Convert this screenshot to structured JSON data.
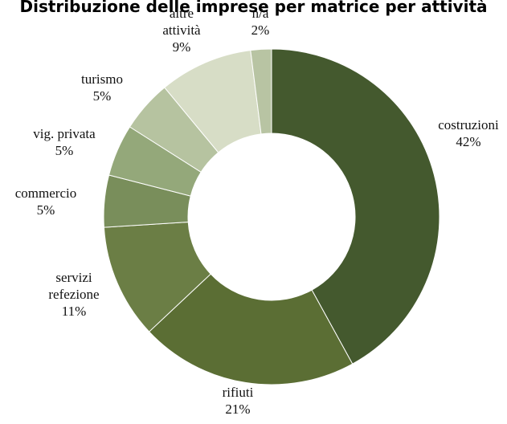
{
  "chart_data": {
    "type": "pie",
    "variant": "donut",
    "title": "Distribuzione delle imprese per matrice per attività",
    "slices": [
      {
        "label_lines": [
          "costruzioni"
        ],
        "percent_label": "42%",
        "value": 42,
        "color": "#44592e"
      },
      {
        "label_lines": [
          "rifiuti"
        ],
        "percent_label": "21%",
        "value": 21,
        "color": "#5b6e34"
      },
      {
        "label_lines": [
          "servizi",
          "refezione"
        ],
        "percent_label": "11%",
        "value": 11,
        "color": "#6b7e45"
      },
      {
        "label_lines": [
          "commercio"
        ],
        "percent_label": "5%",
        "value": 5,
        "color": "#798e5b"
      },
      {
        "label_lines": [
          "vig. privata"
        ],
        "percent_label": "5%",
        "value": 5,
        "color": "#94a87a"
      },
      {
        "label_lines": [
          "turismo"
        ],
        "percent_label": "5%",
        "value": 5,
        "color": "#b6c3a0"
      },
      {
        "label_lines": [
          "altre",
          "attività"
        ],
        "percent_label": "9%",
        "value": 9,
        "color": "#d7ddc6"
      },
      {
        "label_lines": [
          "n/a"
        ],
        "percent_label": "2%",
        "value": 2,
        "color": "#b8c4a3"
      }
    ],
    "legend": "none",
    "grid": false
  }
}
